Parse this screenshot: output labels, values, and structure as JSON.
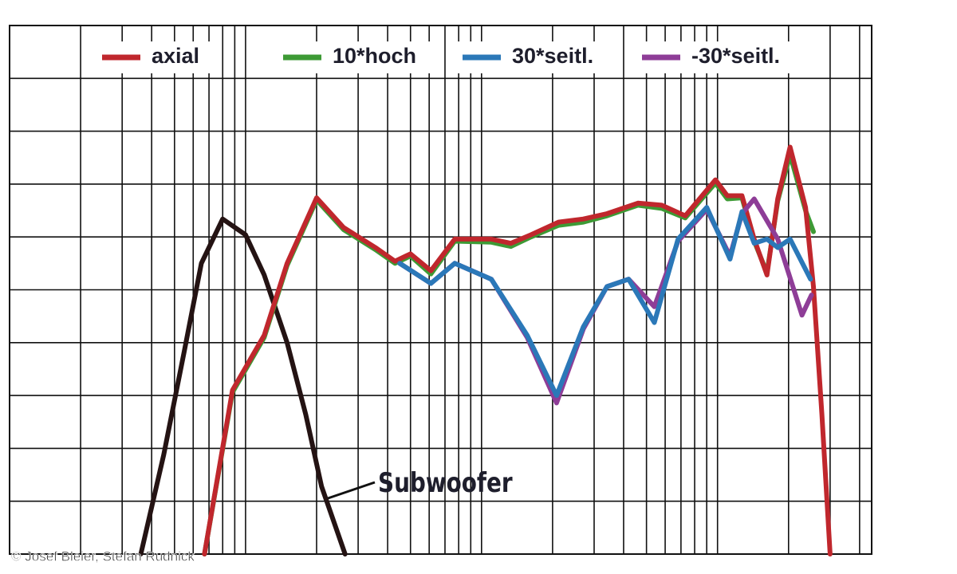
{
  "chart_data": {
    "type": "line",
    "xscale": "log",
    "xlim": [
      10,
      45000
    ],
    "ylim": [
      40,
      90
    ],
    "xticks": [
      20,
      30,
      40,
      50,
      60,
      70,
      80,
      90,
      100,
      200,
      300,
      400,
      500,
      600,
      700,
      800,
      900,
      1000,
      2000,
      3000,
      4000,
      5000,
      6000,
      7000,
      8000,
      9000,
      10000,
      20000,
      30000,
      40000
    ],
    "yticks": [
      45,
      50,
      55,
      60,
      65,
      70,
      75,
      80,
      85
    ],
    "grid": true,
    "legend": "top",
    "series": [
      {
        "name": "10*hoch",
        "color": "#3d9a35",
        "x": [
          67,
          88,
          120,
          150,
          200,
          260,
          355,
          430,
          500,
          610,
          770,
          1100,
          1330,
          1620,
          2120,
          2700,
          3400,
          4600,
          5800,
          7300,
          9800,
          11000,
          12700,
          14300,
          16200,
          18000,
          20300,
          23600,
          25500
        ],
        "values": [
          40,
          55.3,
          60.5,
          67.3,
          73.5,
          70.7,
          68.8,
          67.5,
          68.2,
          66.5,
          69.6,
          69.5,
          69.1,
          70,
          71.1,
          71.4,
          72,
          73,
          72.7,
          71.8,
          75.1,
          73.6,
          73.7,
          69.6,
          66.6,
          73.4,
          77.8,
          72.5,
          70.5
        ]
      },
      {
        "name": "axial",
        "color": "#c0272d",
        "x": [
          67,
          88,
          120,
          150,
          200,
          260,
          355,
          430,
          500,
          610,
          770,
          1100,
          1330,
          1620,
          2120,
          2700,
          3400,
          4600,
          5800,
          7300,
          9800,
          11000,
          12700,
          14300,
          16200,
          18000,
          20300,
          23600,
          25500,
          27700,
          30000
        ],
        "values": [
          40,
          55.5,
          60.7,
          67.5,
          73.7,
          70.9,
          69,
          67.7,
          68.4,
          66.8,
          69.8,
          69.8,
          69.4,
          70.2,
          71.4,
          71.7,
          72.2,
          73.2,
          73,
          72,
          75.4,
          73.9,
          73.9,
          69.8,
          66.4,
          73.6,
          78.5,
          72.8,
          65.3,
          53.2,
          40
        ]
      },
      {
        "name": "-30*seitl.",
        "color": "#8e3d97",
        "x": [
          450,
          610,
          770,
          1100,
          1560,
          2080,
          2700,
          3400,
          4200,
          5400,
          6800,
          9000,
          11300,
          12700,
          14300,
          18000,
          22800,
          25000
        ],
        "values": [
          67.5,
          65.6,
          67.5,
          66,
          60.5,
          54.3,
          61.3,
          65.3,
          66,
          63.4,
          69.6,
          72.6,
          68.2,
          72.2,
          73.6,
          69.8,
          62.6,
          64.5
        ]
      },
      {
        "name": "30*seitl.",
        "color": "#2b78b8",
        "x": [
          450,
          610,
          770,
          1100,
          1560,
          2080,
          2700,
          3400,
          4200,
          5400,
          6800,
          9000,
          11300,
          12700,
          14300,
          16200,
          18000,
          20300,
          24800
        ],
        "values": [
          67.5,
          65.6,
          67.5,
          66,
          60.7,
          55,
          61.5,
          65.3,
          66,
          61.9,
          69.8,
          72.8,
          67.9,
          72.4,
          69.4,
          69.8,
          69,
          69.8,
          66
        ]
      }
    ],
    "subwoofer": {
      "label": "Subwoofer",
      "color": "#241313",
      "x": [
        36,
        45,
        55,
        65,
        80,
        100,
        120,
        150,
        180,
        210,
        264
      ],
      "values": [
        40,
        49.4,
        59.2,
        67.5,
        71.7,
        70.2,
        66.4,
        60,
        53.2,
        46.4,
        40
      ]
    },
    "credit": "© Josef Bleier, Stefan Rudnick"
  }
}
